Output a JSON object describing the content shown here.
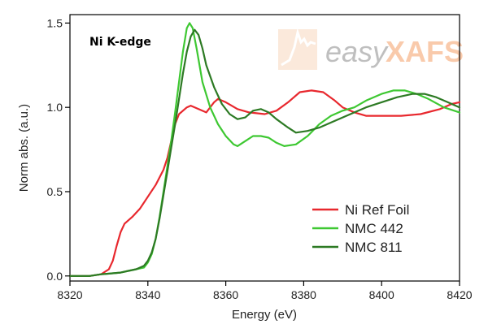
{
  "chart_data": {
    "type": "line",
    "annotation": "Ni K-edge",
    "xlabel": "Energy (eV)",
    "ylabel": "Norm abs. (a.u.)",
    "xlim": [
      8320,
      8420
    ],
    "ylim": [
      -0.03,
      1.55
    ],
    "xticks": [
      8320,
      8340,
      8360,
      8380,
      8400,
      8420
    ],
    "yticks": [
      0.0,
      0.5,
      1.0,
      1.5
    ],
    "ytick_labels": [
      "0.0",
      "0.5",
      "1.0",
      "1.5"
    ],
    "legend_position": "bottom-right",
    "grid": false,
    "series": [
      {
        "name": "Ni Ref Foil",
        "color": "#e8282e",
        "points": [
          [
            8320,
            0.0
          ],
          [
            8325,
            0.0
          ],
          [
            8328,
            0.01
          ],
          [
            8330,
            0.04
          ],
          [
            8331,
            0.09
          ],
          [
            8332,
            0.18
          ],
          [
            8333,
            0.26
          ],
          [
            8334,
            0.31
          ],
          [
            8336,
            0.35
          ],
          [
            8338,
            0.4
          ],
          [
            8340,
            0.47
          ],
          [
            8342,
            0.54
          ],
          [
            8344,
            0.63
          ],
          [
            8345,
            0.7
          ],
          [
            8346,
            0.8
          ],
          [
            8347,
            0.9
          ],
          [
            8348,
            0.96
          ],
          [
            8350,
            1.0
          ],
          [
            8351,
            1.01
          ],
          [
            8353,
            0.99
          ],
          [
            8355,
            0.97
          ],
          [
            8357,
            1.03
          ],
          [
            8358,
            1.05
          ],
          [
            8360,
            1.03
          ],
          [
            8363,
            0.99
          ],
          [
            8366,
            0.97
          ],
          [
            8370,
            0.96
          ],
          [
            8373,
            0.98
          ],
          [
            8376,
            1.03
          ],
          [
            8379,
            1.09
          ],
          [
            8382,
            1.1
          ],
          [
            8385,
            1.09
          ],
          [
            8388,
            1.04
          ],
          [
            8390,
            1.0
          ],
          [
            8393,
            0.97
          ],
          [
            8396,
            0.95
          ],
          [
            8400,
            0.95
          ],
          [
            8405,
            0.95
          ],
          [
            8410,
            0.96
          ],
          [
            8415,
            0.99
          ],
          [
            8418,
            1.02
          ],
          [
            8420,
            1.03
          ]
        ]
      },
      {
        "name": "NMC 442",
        "color": "#3ec832",
        "points": [
          [
            8320,
            0.0
          ],
          [
            8325,
            0.0
          ],
          [
            8328,
            0.01
          ],
          [
            8333,
            0.02
          ],
          [
            8335,
            0.03
          ],
          [
            8337,
            0.04
          ],
          [
            8339,
            0.05
          ],
          [
            8340,
            0.08
          ],
          [
            8341,
            0.13
          ],
          [
            8342,
            0.22
          ],
          [
            8343,
            0.35
          ],
          [
            8344,
            0.5
          ],
          [
            8345,
            0.65
          ],
          [
            8346,
            0.8
          ],
          [
            8347,
            0.97
          ],
          [
            8348,
            1.15
          ],
          [
            8349,
            1.33
          ],
          [
            8350,
            1.47
          ],
          [
            8350.7,
            1.5
          ],
          [
            8351.5,
            1.47
          ],
          [
            8352.5,
            1.35
          ],
          [
            8354,
            1.15
          ],
          [
            8356,
            1.0
          ],
          [
            8358,
            0.9
          ],
          [
            8360,
            0.83
          ],
          [
            8362,
            0.78
          ],
          [
            8363,
            0.77
          ],
          [
            8365,
            0.8
          ],
          [
            8367,
            0.83
          ],
          [
            8369,
            0.83
          ],
          [
            8371,
            0.82
          ],
          [
            8373,
            0.79
          ],
          [
            8375,
            0.77
          ],
          [
            8378,
            0.78
          ],
          [
            8381,
            0.83
          ],
          [
            8384,
            0.9
          ],
          [
            8387,
            0.95
          ],
          [
            8390,
            0.98
          ],
          [
            8393,
            1.0
          ],
          [
            8396,
            1.04
          ],
          [
            8400,
            1.08
          ],
          [
            8403,
            1.1
          ],
          [
            8406,
            1.1
          ],
          [
            8409,
            1.08
          ],
          [
            8412,
            1.05
          ],
          [
            8416,
            1.0
          ],
          [
            8420,
            0.97
          ]
        ]
      },
      {
        "name": "NMC 811",
        "color": "#2d7a24",
        "points": [
          [
            8320,
            0.0
          ],
          [
            8325,
            0.0
          ],
          [
            8328,
            0.01
          ],
          [
            8333,
            0.02
          ],
          [
            8335,
            0.03
          ],
          [
            8337,
            0.04
          ],
          [
            8339,
            0.06
          ],
          [
            8340,
            0.09
          ],
          [
            8341,
            0.14
          ],
          [
            8342,
            0.22
          ],
          [
            8343,
            0.34
          ],
          [
            8344,
            0.48
          ],
          [
            8345,
            0.62
          ],
          [
            8346,
            0.76
          ],
          [
            8347,
            0.9
          ],
          [
            8348,
            1.05
          ],
          [
            8349,
            1.2
          ],
          [
            8350,
            1.33
          ],
          [
            8351,
            1.42
          ],
          [
            8352,
            1.46
          ],
          [
            8353,
            1.43
          ],
          [
            8354,
            1.35
          ],
          [
            8355,
            1.25
          ],
          [
            8357,
            1.12
          ],
          [
            8359,
            1.02
          ],
          [
            8361,
            0.96
          ],
          [
            8363,
            0.93
          ],
          [
            8365,
            0.94
          ],
          [
            8367,
            0.98
          ],
          [
            8369,
            0.99
          ],
          [
            8371,
            0.97
          ],
          [
            8373,
            0.93
          ],
          [
            8376,
            0.88
          ],
          [
            8378,
            0.85
          ],
          [
            8381,
            0.86
          ],
          [
            8384,
            0.88
          ],
          [
            8387,
            0.91
          ],
          [
            8390,
            0.94
          ],
          [
            8393,
            0.97
          ],
          [
            8396,
            1.0
          ],
          [
            8400,
            1.03
          ],
          [
            8404,
            1.06
          ],
          [
            8408,
            1.08
          ],
          [
            8411,
            1.08
          ],
          [
            8414,
            1.06
          ],
          [
            8417,
            1.03
          ],
          [
            8420,
            1.0
          ]
        ]
      }
    ]
  },
  "watermark": {
    "text_easy": "easy",
    "text_xafs": "XAFS",
    "color": "#f5a068"
  }
}
